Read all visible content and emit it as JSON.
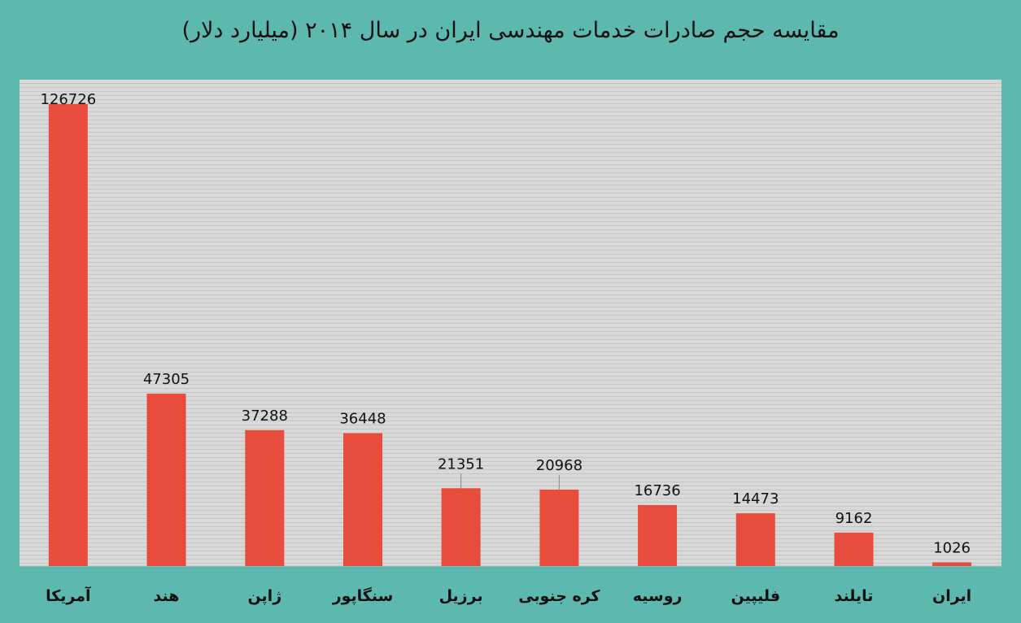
{
  "chart_data": {
    "type": "bar",
    "title": "مقایسه حجم صادرات خدمات مهندسی ایران در سال ۲۰۱۴ (میلیارد دلار)",
    "xlabel": "",
    "ylabel": "",
    "categories": [
      "آمریکا",
      "هند",
      "ژاپن",
      "سنگاپور",
      "برزیل",
      "کره جنوبی",
      "روسیه",
      "فلیپین",
      "تایلند",
      "ایران"
    ],
    "values": [
      126726,
      47305,
      37288,
      36448,
      21351,
      20968,
      16736,
      14473,
      9162,
      1026
    ],
    "value_labels": [
      "126726",
      "47305",
      "37288",
      "36448",
      "21351",
      "20968",
      "16736",
      "14473",
      "9162",
      "1026"
    ],
    "ylim": [
      0,
      126726
    ],
    "grid": true,
    "legend": "none"
  },
  "colors": {
    "frame": "#5db8b0",
    "plot_background": "#d9d9d9",
    "gridline": "#c4c4c4",
    "bar": "#e84c3d",
    "text": "#111111"
  }
}
